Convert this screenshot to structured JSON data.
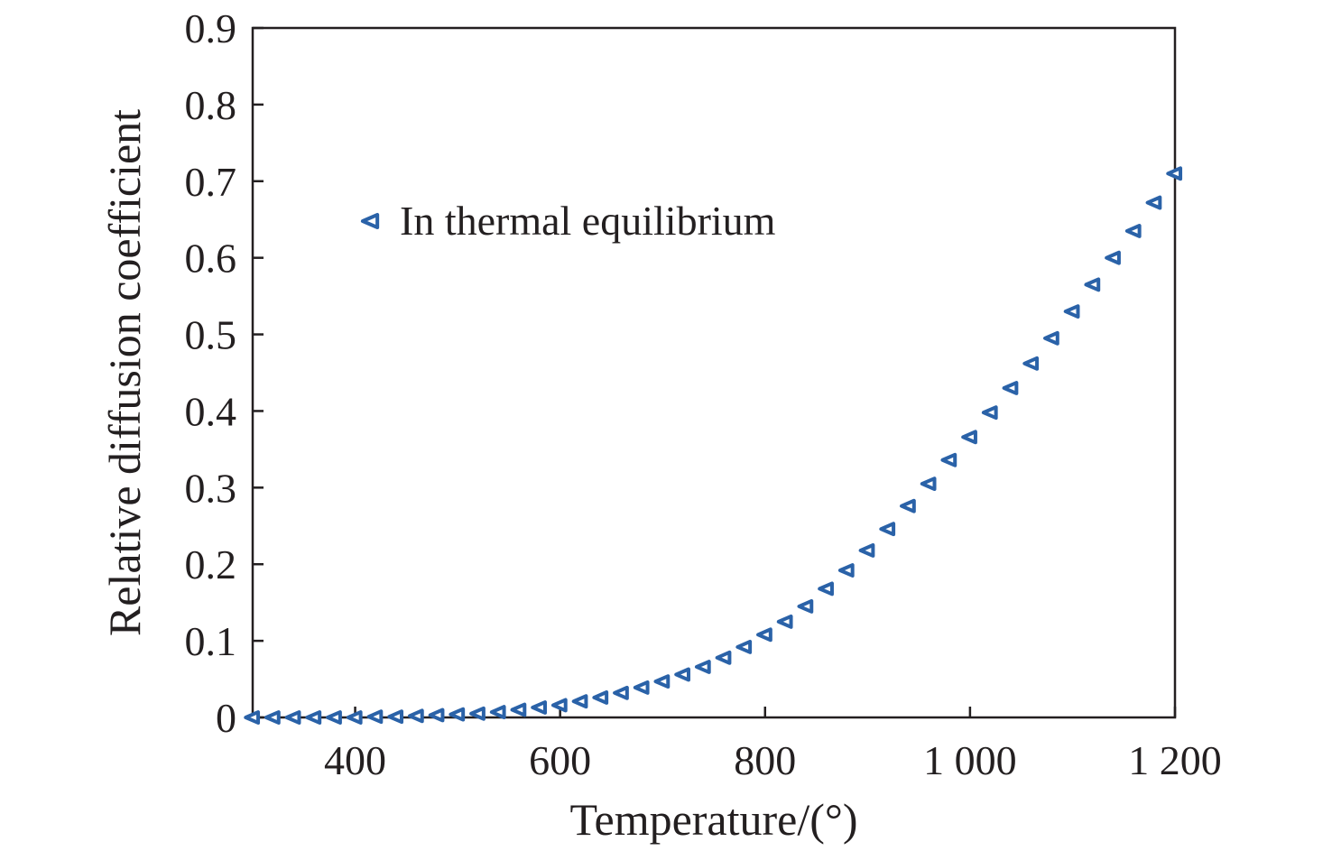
{
  "chart_data": {
    "type": "scatter",
    "title": "",
    "xlabel": "Temperature/(°)",
    "ylabel": "Relative diffusion coefficient",
    "xlim": [
      300,
      1200
    ],
    "ylim": [
      0,
      0.9
    ],
    "x_ticks": [
      400,
      600,
      800,
      1000,
      1200
    ],
    "x_tick_labels": [
      "400",
      "600",
      "800",
      "1 000",
      "1 200"
    ],
    "y_ticks": [
      0,
      0.1,
      0.2,
      0.3,
      0.4,
      0.5,
      0.6,
      0.7,
      0.8,
      0.9
    ],
    "y_tick_labels": [
      "0",
      "0.1",
      "0.2",
      "0.3",
      "0.4",
      "0.5",
      "0.6",
      "0.7",
      "0.8",
      "0.9"
    ],
    "grid": false,
    "legend_position": "upper-left",
    "series": [
      {
        "name": "In thermal equilibrium",
        "marker": "triangle-left",
        "color": "#2a62a8",
        "x": [
          300,
          320,
          340,
          360,
          380,
          400,
          420,
          440,
          460,
          480,
          500,
          520,
          540,
          560,
          580,
          600,
          620,
          640,
          660,
          680,
          700,
          720,
          740,
          760,
          780,
          800,
          820,
          840,
          860,
          880,
          900,
          920,
          940,
          960,
          980,
          1000,
          1020,
          1040,
          1060,
          1080,
          1100,
          1120,
          1140,
          1160,
          1180,
          1200
        ],
        "y": [
          0.0,
          0.0,
          0.0,
          0.0,
          0.0,
          0.0,
          0.001,
          0.001,
          0.002,
          0.003,
          0.004,
          0.005,
          0.007,
          0.01,
          0.013,
          0.016,
          0.021,
          0.026,
          0.032,
          0.039,
          0.047,
          0.056,
          0.066,
          0.078,
          0.092,
          0.108,
          0.125,
          0.145,
          0.168,
          0.192,
          0.218,
          0.246,
          0.276,
          0.305,
          0.336,
          0.366,
          0.398,
          0.43,
          0.462,
          0.495,
          0.53,
          0.565,
          0.6,
          0.635,
          0.672,
          0.71
        ]
      }
    ]
  }
}
